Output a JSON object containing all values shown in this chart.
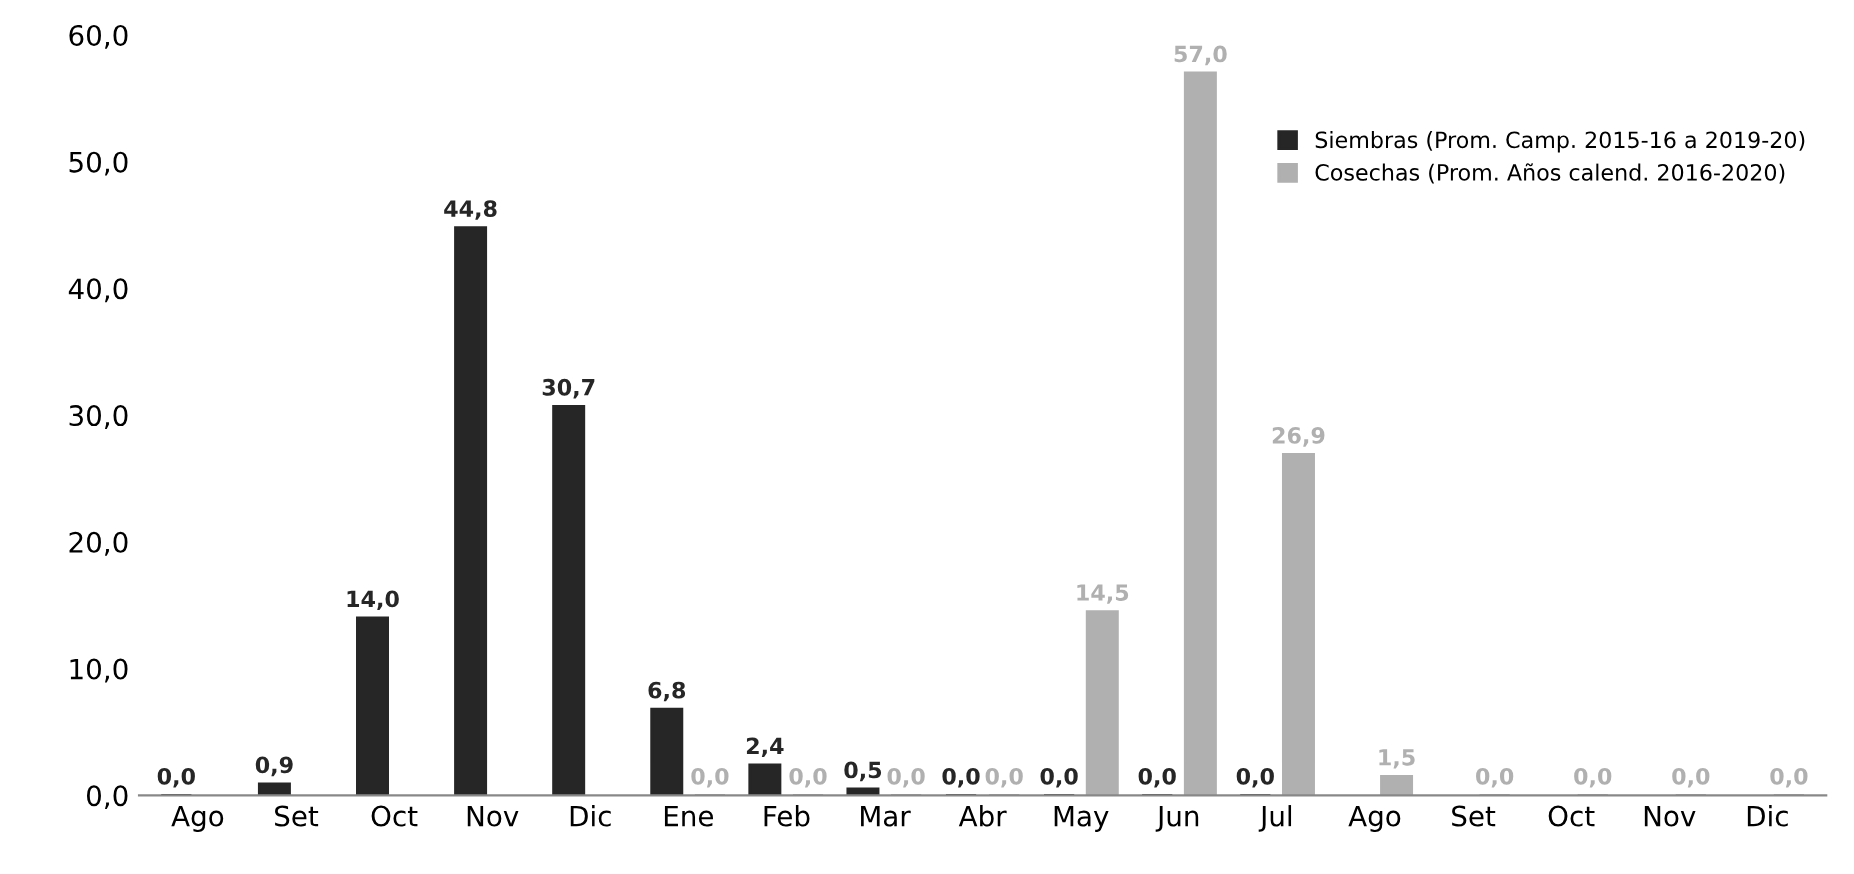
{
  "chart_data": {
    "type": "bar",
    "categories": [
      "Ago",
      "Set",
      "Oct",
      "Nov",
      "Dic",
      "Ene",
      "Feb",
      "Mar",
      "Abr",
      "May",
      "Jun",
      "Jul",
      "Ago",
      "Set",
      "Oct",
      "Nov",
      "Dic"
    ],
    "series": [
      {
        "name": "Siembras (Prom. Camp. 2015-16 a 2019-20)",
        "color": "#262626",
        "values": [
          0.0,
          0.9,
          14.0,
          44.8,
          30.7,
          6.8,
          2.4,
          0.5,
          0.0,
          0.0,
          0.0,
          0.0,
          null,
          null,
          null,
          null,
          null
        ],
        "value_labels": [
          "0,0",
          "0,9",
          "14,0",
          "44,8",
          "30,7",
          "6,8",
          "2,4",
          "0,5",
          "0,0",
          "0,0",
          "0,0",
          "0,0",
          null,
          null,
          null,
          null,
          null
        ]
      },
      {
        "name": "Cosechas (Prom. Años calend. 2016-2020)",
        "color": "#b0b0b0",
        "values": [
          null,
          null,
          null,
          null,
          null,
          0.0,
          0.0,
          0.0,
          0.0,
          14.5,
          57.0,
          26.9,
          1.5,
          0.0,
          0.0,
          0.0,
          0.0
        ],
        "value_labels": [
          null,
          null,
          null,
          null,
          null,
          "0,0",
          "0,0",
          "0,0",
          "0,0",
          "14,5",
          "57,0",
          "26,9",
          "1,5",
          "0,0",
          "0,0",
          "0,0",
          "0,0"
        ]
      }
    ],
    "ylim": [
      0,
      60
    ],
    "yticks": [
      {
        "value": 0,
        "label": "0,0"
      },
      {
        "value": 10,
        "label": "10,0"
      },
      {
        "value": 20,
        "label": "20,0"
      },
      {
        "value": 30,
        "label": "30,0"
      },
      {
        "value": 40,
        "label": "40,0"
      },
      {
        "value": 50,
        "label": "50,0"
      },
      {
        "value": 60,
        "label": "60,0"
      }
    ],
    "grid": false,
    "legend": "top right"
  }
}
